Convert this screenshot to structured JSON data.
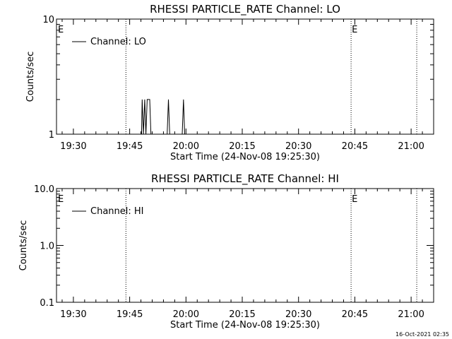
{
  "footer": {
    "timestamp": "16-Oct-2021 02:35"
  },
  "chart_data": [
    {
      "type": "line",
      "title": "RHESSI PARTICLE_RATE Channel: LO",
      "xlabel": "Start Time (24-Nov-08 19:25:30)",
      "ylabel": "Counts/sec",
      "yscale": "log",
      "xlim": [
        "19:25:30",
        "21:06:00"
      ],
      "ylim": [
        1,
        10
      ],
      "x_ticks": [
        "19:30",
        "19:45",
        "20:00",
        "20:15",
        "20:30",
        "20:45",
        "21:00"
      ],
      "y_ticks": [
        "1",
        "10"
      ],
      "legend": {
        "label": "Channel: LO",
        "placement": "top-left"
      },
      "event_markers": [
        {
          "time": "19:44:00",
          "label": "E"
        },
        {
          "time": "20:44:00",
          "label": ""
        },
        {
          "time": "21:01:30",
          "label": ""
        }
      ],
      "edge_labels": [
        {
          "position": "left",
          "label": "E"
        },
        {
          "position": "right",
          "label": "E"
        }
      ],
      "series": [
        {
          "name": "Channel: LO",
          "points": [
            [
              "19:25:30",
              1
            ],
            [
              "19:48:10",
              1
            ],
            [
              "19:48:20",
              2
            ],
            [
              "19:48:40",
              1
            ],
            [
              "19:49:00",
              2
            ],
            [
              "19:49:20",
              1
            ],
            [
              "19:49:40",
              2
            ],
            [
              "19:50:00",
              2
            ],
            [
              "19:50:20",
              2
            ],
            [
              "19:50:40",
              1
            ],
            [
              "19:55:00",
              1
            ],
            [
              "19:55:20",
              2
            ],
            [
              "19:55:40",
              1
            ],
            [
              "19:59:00",
              1
            ],
            [
              "19:59:20",
              2
            ],
            [
              "19:59:40",
              1
            ],
            [
              "21:06:00",
              1
            ]
          ]
        }
      ]
    },
    {
      "type": "line",
      "title": "RHESSI PARTICLE_RATE Channel: HI",
      "xlabel": "Start Time (24-Nov-08 19:25:30)",
      "ylabel": "Counts/sec",
      "yscale": "log",
      "xlim": [
        "19:25:30",
        "21:06:00"
      ],
      "ylim": [
        0.1,
        10
      ],
      "x_ticks": [
        "19:30",
        "19:45",
        "20:00",
        "20:15",
        "20:30",
        "20:45",
        "21:00"
      ],
      "y_ticks": [
        "0.1",
        "1.0",
        "10.0"
      ],
      "legend": {
        "label": "Channel: HI",
        "placement": "top-left"
      },
      "event_markers": [
        {
          "time": "19:44:00",
          "label": ""
        },
        {
          "time": "20:44:00",
          "label": ""
        },
        {
          "time": "21:01:30",
          "label": ""
        }
      ],
      "edge_labels": [
        {
          "position": "left",
          "label": "E"
        },
        {
          "position": "right",
          "label": "E"
        }
      ],
      "series": [
        {
          "name": "Channel: HI",
          "points": []
        }
      ]
    }
  ]
}
